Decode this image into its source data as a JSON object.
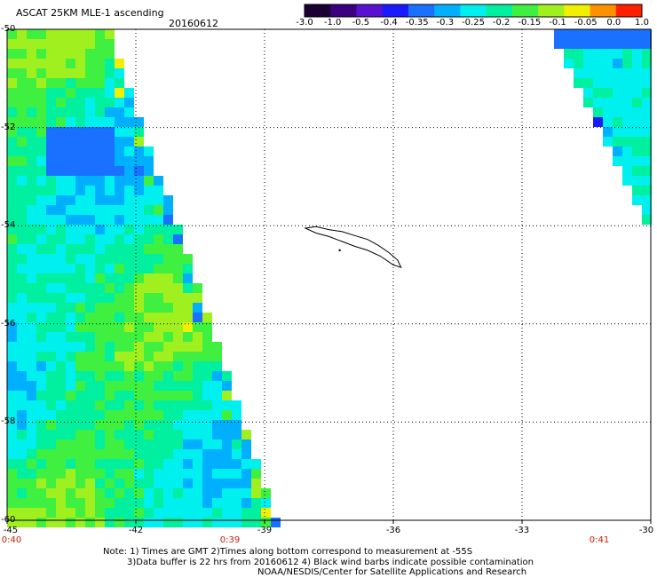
{
  "header": {
    "product": "ASCAT 25KM MLE-1 ascending",
    "date": "20160612"
  },
  "colorbar": {
    "tick_labels": [
      "-3.0",
      "-1.0",
      "-0.5",
      "-0.4",
      "-0.35",
      "-0.3",
      "-0.25",
      "-0.2",
      "-0.15",
      "-0.1",
      "-0.05",
      "0.0",
      "1.0"
    ],
    "colors": [
      "#1a0033",
      "#3a0080",
      "#5a10d0",
      "#1a1aff",
      "#1a70ff",
      "#00b0ff",
      "#00f0f0",
      "#00f0a0",
      "#40f040",
      "#a0f020",
      "#f0f000",
      "#ff9000",
      "#ff2000"
    ]
  },
  "map": {
    "lat_labels": [
      "-50",
      "-52",
      "-54",
      "-56",
      "-58",
      "-60"
    ],
    "lon_labels": [
      "-45",
      "-42",
      "-39",
      "-36",
      "-33",
      "-30"
    ],
    "time_labels": [
      "0:40",
      "0:39",
      "0:41"
    ],
    "land": "South Georgia"
  },
  "chart_data": {
    "type": "heatmap",
    "title": "ASCAT 25KM MLE-1 ascending 20160612",
    "lon_range": [
      -45,
      -30
    ],
    "lat_range": [
      -60,
      -50
    ],
    "grid": "dotted",
    "swaths": [
      {
        "time": "0:40",
        "lon_min": -45,
        "east_edge_lon_at_top": -42.6,
        "east_edge_lon_at_bottom": -38.7,
        "dominant_range": [
          -0.3,
          -0.1
        ]
      },
      {
        "time": "0:41",
        "west_edge_lon_at_top": -32.4,
        "lat_bottom": -54.1,
        "lon_max": -30,
        "dominant_range": [
          -0.35,
          -0.15
        ]
      }
    ]
  },
  "notes": [
    "Note: 1) Times are GMT 2)Times along bottom correspond to measurement at -55S",
    "3)Data buffer is 22 hrs from 20160612 4) Black wind barbs indicate possible contamination",
    "NOAA/NESDIS/Center for Satellite Applications and Research"
  ]
}
